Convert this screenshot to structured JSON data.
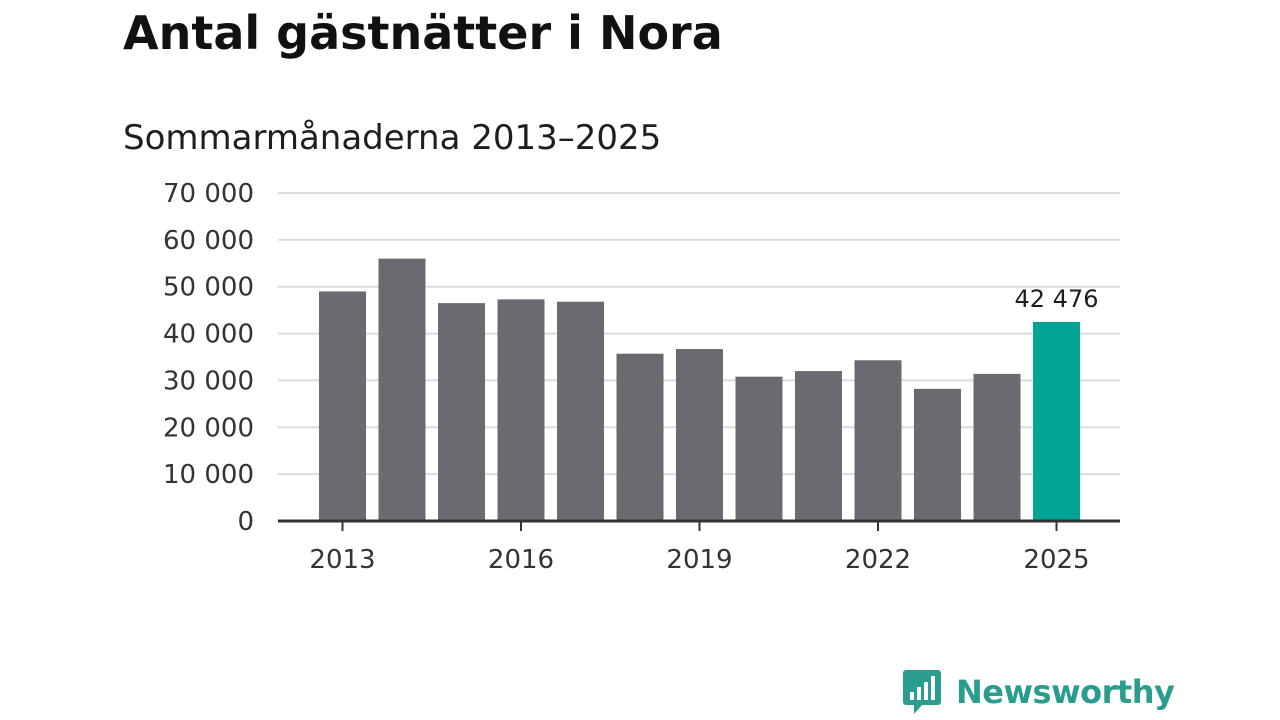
{
  "title": "Antal gästnätter i Nora",
  "subtitle": "Sommarmånaderna 2013–2025",
  "brand": {
    "name": "Newsworthy",
    "icon": "newsworthy-logo-icon",
    "color": "#2a9d8f"
  },
  "colors": {
    "bar": "#6b6a71",
    "highlight": "#00a396",
    "grid": "#dcdcdc",
    "axis": "#333333"
  },
  "chart_data": {
    "type": "bar",
    "categories": [
      "2013",
      "2014",
      "2015",
      "2016",
      "2017",
      "2018",
      "2019",
      "2020",
      "2021",
      "2022",
      "2023",
      "2024",
      "2025"
    ],
    "values": [
      49000,
      56000,
      46500,
      47300,
      46800,
      35700,
      36700,
      30800,
      32000,
      34300,
      28200,
      31400,
      42476
    ],
    "highlight_index": 12,
    "x_tick_labels": [
      "2013",
      "2016",
      "2019",
      "2022",
      "2025"
    ],
    "y_ticks": [
      0,
      10000,
      20000,
      30000,
      40000,
      50000,
      60000,
      70000
    ],
    "y_tick_labels": [
      "0",
      "10 000",
      "20 000",
      "30 000",
      "40 000",
      "50 000",
      "60 000",
      "70 000"
    ],
    "ylim": [
      0,
      70000
    ],
    "data_labels": [
      {
        "category": "2025",
        "text": "42 476"
      }
    ],
    "grid": true,
    "legend": "none",
    "xlabel": "",
    "ylabel": ""
  }
}
